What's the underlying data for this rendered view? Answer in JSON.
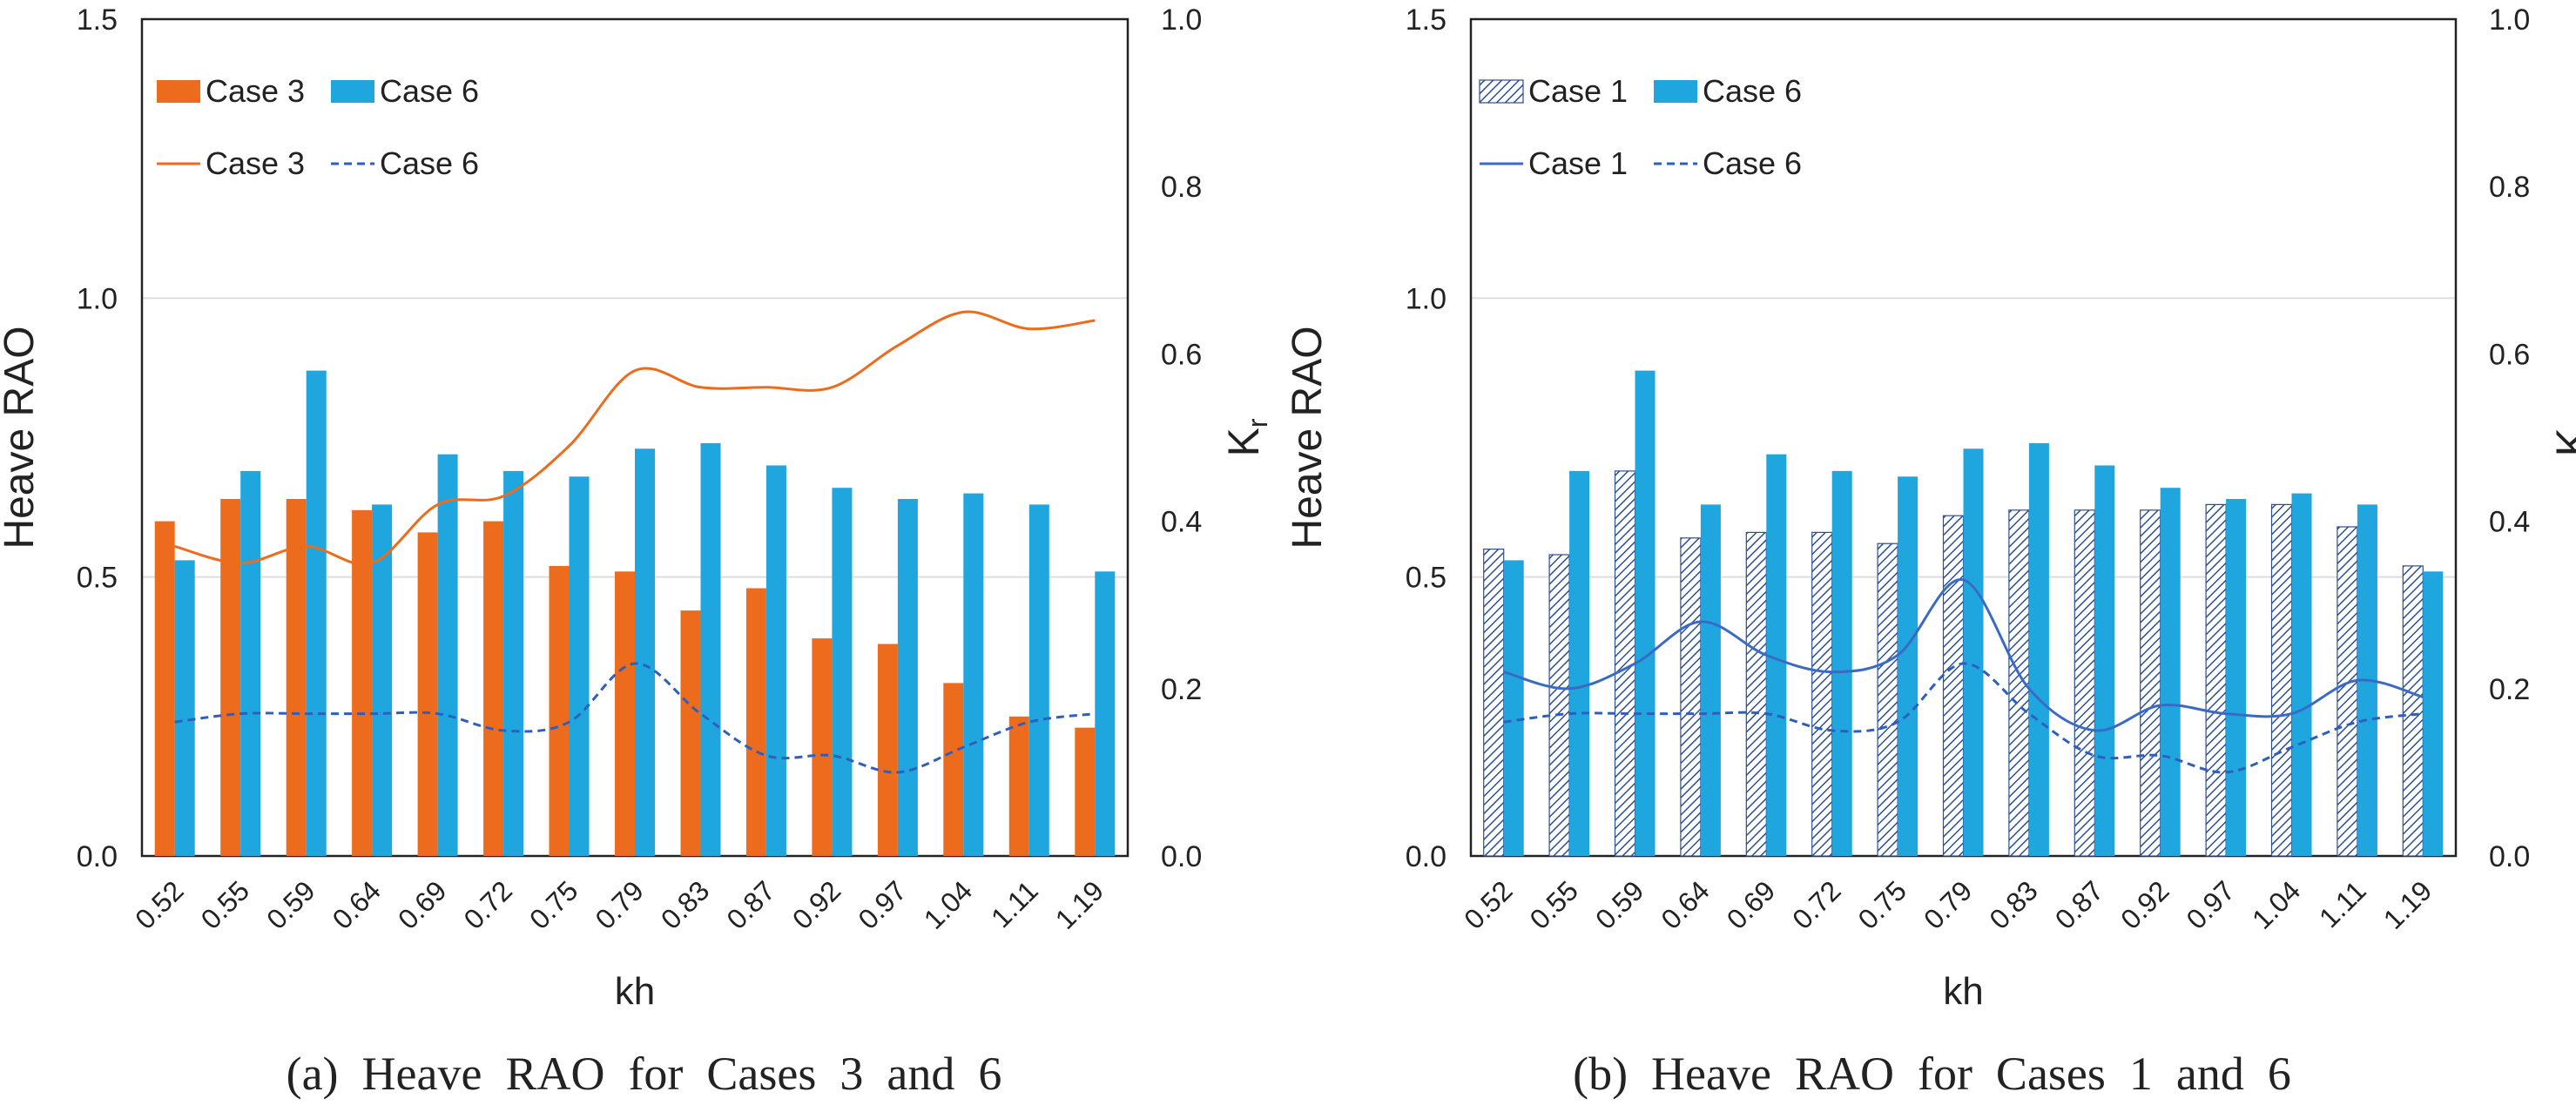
{
  "colors": {
    "case3": "#ed6b1c",
    "case6": "#1fa6df",
    "case1_line": "#3a6bc4",
    "case6_line": "#2e5fbf",
    "case1_hatch": "#2e4f8f",
    "axis": "#222222",
    "grid": "#dddddd",
    "text": "#222222"
  },
  "chart_data": [
    {
      "type": "bar",
      "caption": "(a)  Heave  RAO  for  Cases  3  and  6",
      "xlabel": "kh",
      "ylabel": "Heave RAO",
      "y2label": "K",
      "y2label_sub": "r",
      "ylim": [
        0,
        1.5
      ],
      "y2lim": [
        0,
        1.0
      ],
      "yticks": [
        "0.0",
        "0.5",
        "1.0",
        "1.5"
      ],
      "y2ticks": [
        "0.0",
        "0.2",
        "0.4",
        "0.6",
        "0.8",
        "1.0"
      ],
      "categories": [
        "0.52",
        "0.55",
        "0.59",
        "0.64",
        "0.69",
        "0.72",
        "0.75",
        "0.79",
        "0.83",
        "0.87",
        "0.92",
        "0.97",
        "1.04",
        "1.11",
        "1.19"
      ],
      "grid": "horizontal",
      "legend_position": "top-left",
      "bar_series": [
        {
          "name": "Case 3",
          "style": "solid-orange",
          "values": [
            0.6,
            0.64,
            0.64,
            0.62,
            0.58,
            0.6,
            0.52,
            0.51,
            0.44,
            0.48,
            0.39,
            0.38,
            0.31,
            0.25,
            0.23
          ]
        },
        {
          "name": "Case 6",
          "style": "solid-blue",
          "values": [
            0.53,
            0.69,
            0.87,
            0.63,
            0.72,
            0.69,
            0.68,
            0.73,
            0.74,
            0.7,
            0.66,
            0.64,
            0.65,
            0.63,
            0.51
          ]
        }
      ],
      "line_series": [
        {
          "name": "Case 3",
          "style": "solid-orange",
          "axis": "right",
          "values": [
            0.37,
            0.35,
            0.37,
            0.35,
            0.42,
            0.43,
            0.49,
            0.58,
            0.56,
            0.56,
            0.56,
            0.61,
            0.65,
            0.63,
            0.64
          ]
        },
        {
          "name": "Case 6",
          "style": "dashed-blue",
          "axis": "right",
          "values": [
            0.16,
            0.17,
            0.17,
            0.17,
            0.17,
            0.15,
            0.16,
            0.23,
            0.17,
            0.12,
            0.12,
            0.1,
            0.13,
            0.16,
            0.17
          ]
        }
      ]
    },
    {
      "type": "bar",
      "caption": "(b)  Heave  RAO  for  Cases  1  and  6",
      "xlabel": "kh",
      "ylabel": "Heave RAO",
      "y2label": "K",
      "y2label_sub": "r",
      "ylim": [
        0,
        1.5
      ],
      "y2lim": [
        0,
        1.0
      ],
      "yticks": [
        "0.0",
        "0.5",
        "1.0",
        "1.5"
      ],
      "y2ticks": [
        "0.0",
        "0.2",
        "0.4",
        "0.6",
        "0.8",
        "1.0"
      ],
      "categories": [
        "0.52",
        "0.55",
        "0.59",
        "0.64",
        "0.69",
        "0.72",
        "0.75",
        "0.79",
        "0.83",
        "0.87",
        "0.92",
        "0.97",
        "1.04",
        "1.11",
        "1.19"
      ],
      "grid": "horizontal",
      "legend_position": "top-left",
      "bar_series": [
        {
          "name": "Case 1",
          "style": "hatched",
          "values": [
            0.55,
            0.54,
            0.69,
            0.57,
            0.58,
            0.58,
            0.56,
            0.61,
            0.62,
            0.62,
            0.62,
            0.63,
            0.63,
            0.59,
            0.52
          ]
        },
        {
          "name": "Case 6",
          "style": "solid-blue",
          "values": [
            0.53,
            0.69,
            0.87,
            0.63,
            0.72,
            0.69,
            0.68,
            0.73,
            0.74,
            0.7,
            0.66,
            0.64,
            0.65,
            0.63,
            0.51
          ]
        }
      ],
      "line_series": [
        {
          "name": "Case 1",
          "style": "solid-blue",
          "axis": "right",
          "values": [
            0.22,
            0.2,
            0.23,
            0.28,
            0.24,
            0.22,
            0.24,
            0.33,
            0.2,
            0.15,
            0.18,
            0.17,
            0.17,
            0.21,
            0.19
          ]
        },
        {
          "name": "Case 6",
          "style": "dashed-blue",
          "axis": "right",
          "values": [
            0.16,
            0.17,
            0.17,
            0.17,
            0.17,
            0.15,
            0.16,
            0.23,
            0.17,
            0.12,
            0.12,
            0.1,
            0.13,
            0.16,
            0.17
          ]
        }
      ]
    }
  ]
}
